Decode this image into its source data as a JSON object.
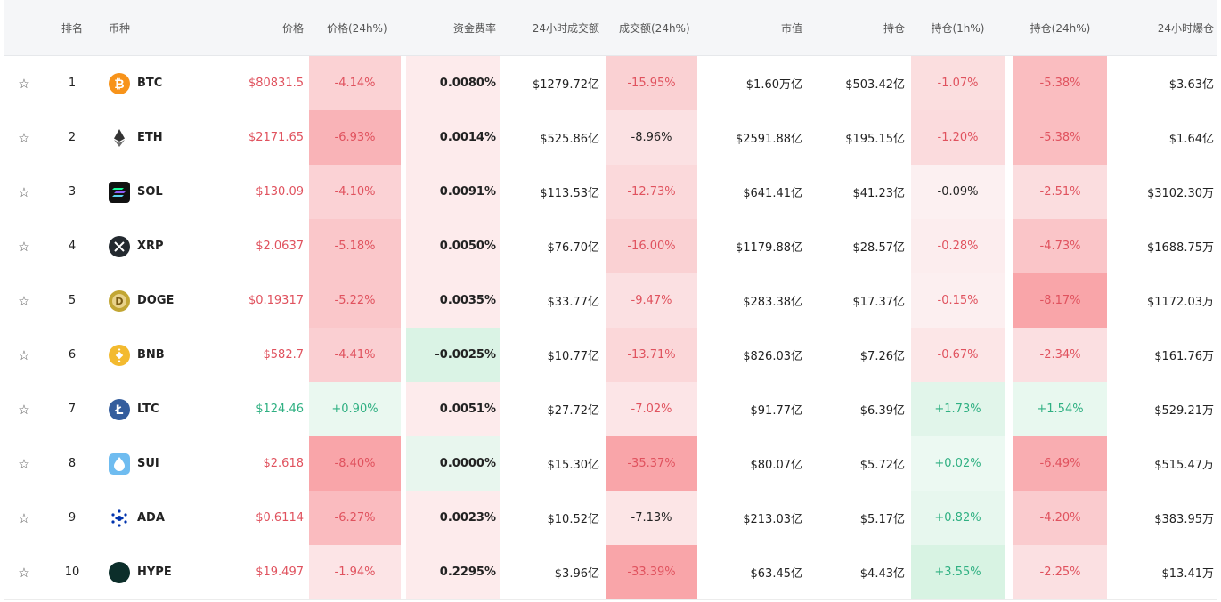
{
  "headers": {
    "rank": "排名",
    "coin": "币种",
    "price": "价格",
    "price_change": "价格(24h%)",
    "funding": "资金费率",
    "volume": "24小时成交额",
    "volume_change": "成交额(24h%)",
    "mcap": "市值",
    "oi": "持仓",
    "oi_1h": "持仓(1h%)",
    "oi_24h": "持仓(24h%)",
    "liq": "24小时爆仓"
  },
  "star_glyph": "☆",
  "rows": [
    {
      "rank": "1",
      "sym": "BTC",
      "icon": "bitcoin-icon",
      "price": "$80831.5",
      "pc": "-4.14%",
      "fr": "0.0080%",
      "vol": "$1279.72亿",
      "vc": "-15.95%",
      "mcap": "$1.60万亿",
      "oi": "$503.42亿",
      "oi1": "-1.07%",
      "oi24": "-5.38%",
      "liq": "$3.63亿"
    },
    {
      "rank": "2",
      "sym": "ETH",
      "icon": "ethereum-icon",
      "price": "$2171.65",
      "pc": "-6.93%",
      "fr": "0.0014%",
      "vol": "$525.86亿",
      "vc": "-8.96%",
      "mcap": "$2591.88亿",
      "oi": "$195.15亿",
      "oi1": "-1.20%",
      "oi24": "-5.38%",
      "liq": "$1.64亿"
    },
    {
      "rank": "3",
      "sym": "SOL",
      "icon": "solana-icon",
      "price": "$130.09",
      "pc": "-4.10%",
      "fr": "0.0091%",
      "vol": "$113.53亿",
      "vc": "-12.73%",
      "mcap": "$641.41亿",
      "oi": "$41.23亿",
      "oi1": "-0.09%",
      "oi24": "-2.51%",
      "liq": "$3102.30万"
    },
    {
      "rank": "4",
      "sym": "XRP",
      "icon": "xrp-icon",
      "price": "$2.0637",
      "pc": "-5.18%",
      "fr": "0.0050%",
      "vol": "$76.70亿",
      "vc": "-16.00%",
      "mcap": "$1179.88亿",
      "oi": "$28.57亿",
      "oi1": "-0.28%",
      "oi24": "-4.73%",
      "liq": "$1688.75万"
    },
    {
      "rank": "5",
      "sym": "DOGE",
      "icon": "dogecoin-icon",
      "price": "$0.19317",
      "pc": "-5.22%",
      "fr": "0.0035%",
      "vol": "$33.77亿",
      "vc": "-9.47%",
      "mcap": "$283.38亿",
      "oi": "$17.37亿",
      "oi1": "-0.15%",
      "oi24": "-8.17%",
      "liq": "$1172.03万"
    },
    {
      "rank": "6",
      "sym": "BNB",
      "icon": "bnb-icon",
      "price": "$582.7",
      "pc": "-4.41%",
      "fr": "-0.0025%",
      "vol": "$10.77亿",
      "vc": "-13.71%",
      "mcap": "$826.03亿",
      "oi": "$7.26亿",
      "oi1": "-0.67%",
      "oi24": "-2.34%",
      "liq": "$161.76万"
    },
    {
      "rank": "7",
      "sym": "LTC",
      "icon": "litecoin-icon",
      "price": "$124.46",
      "pc": "+0.90%",
      "fr": "0.0051%",
      "vol": "$27.72亿",
      "vc": "-7.02%",
      "mcap": "$91.77亿",
      "oi": "$6.39亿",
      "oi1": "+1.73%",
      "oi24": "+1.54%",
      "liq": "$529.21万"
    },
    {
      "rank": "8",
      "sym": "SUI",
      "icon": "sui-icon",
      "price": "$2.618",
      "pc": "-8.40%",
      "fr": "0.0000%",
      "vol": "$15.30亿",
      "vc": "-35.37%",
      "mcap": "$80.07亿",
      "oi": "$5.72亿",
      "oi1": "+0.02%",
      "oi24": "-6.49%",
      "liq": "$515.47万"
    },
    {
      "rank": "9",
      "sym": "ADA",
      "icon": "cardano-icon",
      "price": "$0.6114",
      "pc": "-6.27%",
      "fr": "0.0023%",
      "vol": "$10.52亿",
      "vc": "-7.13%",
      "mcap": "$213.03亿",
      "oi": "$5.17亿",
      "oi1": "+0.82%",
      "oi24": "-4.20%",
      "liq": "$383.95万"
    },
    {
      "rank": "10",
      "sym": "HYPE",
      "icon": "hyperliquid-icon",
      "price": "$19.497",
      "pc": "-1.94%",
      "fr": "0.2295%",
      "vol": "$3.96亿",
      "vc": "-33.39%",
      "mcap": "$63.45亿",
      "oi": "$4.43亿",
      "oi1": "+3.55%",
      "oi24": "-2.25%",
      "liq": "$13.41万"
    }
  ]
}
